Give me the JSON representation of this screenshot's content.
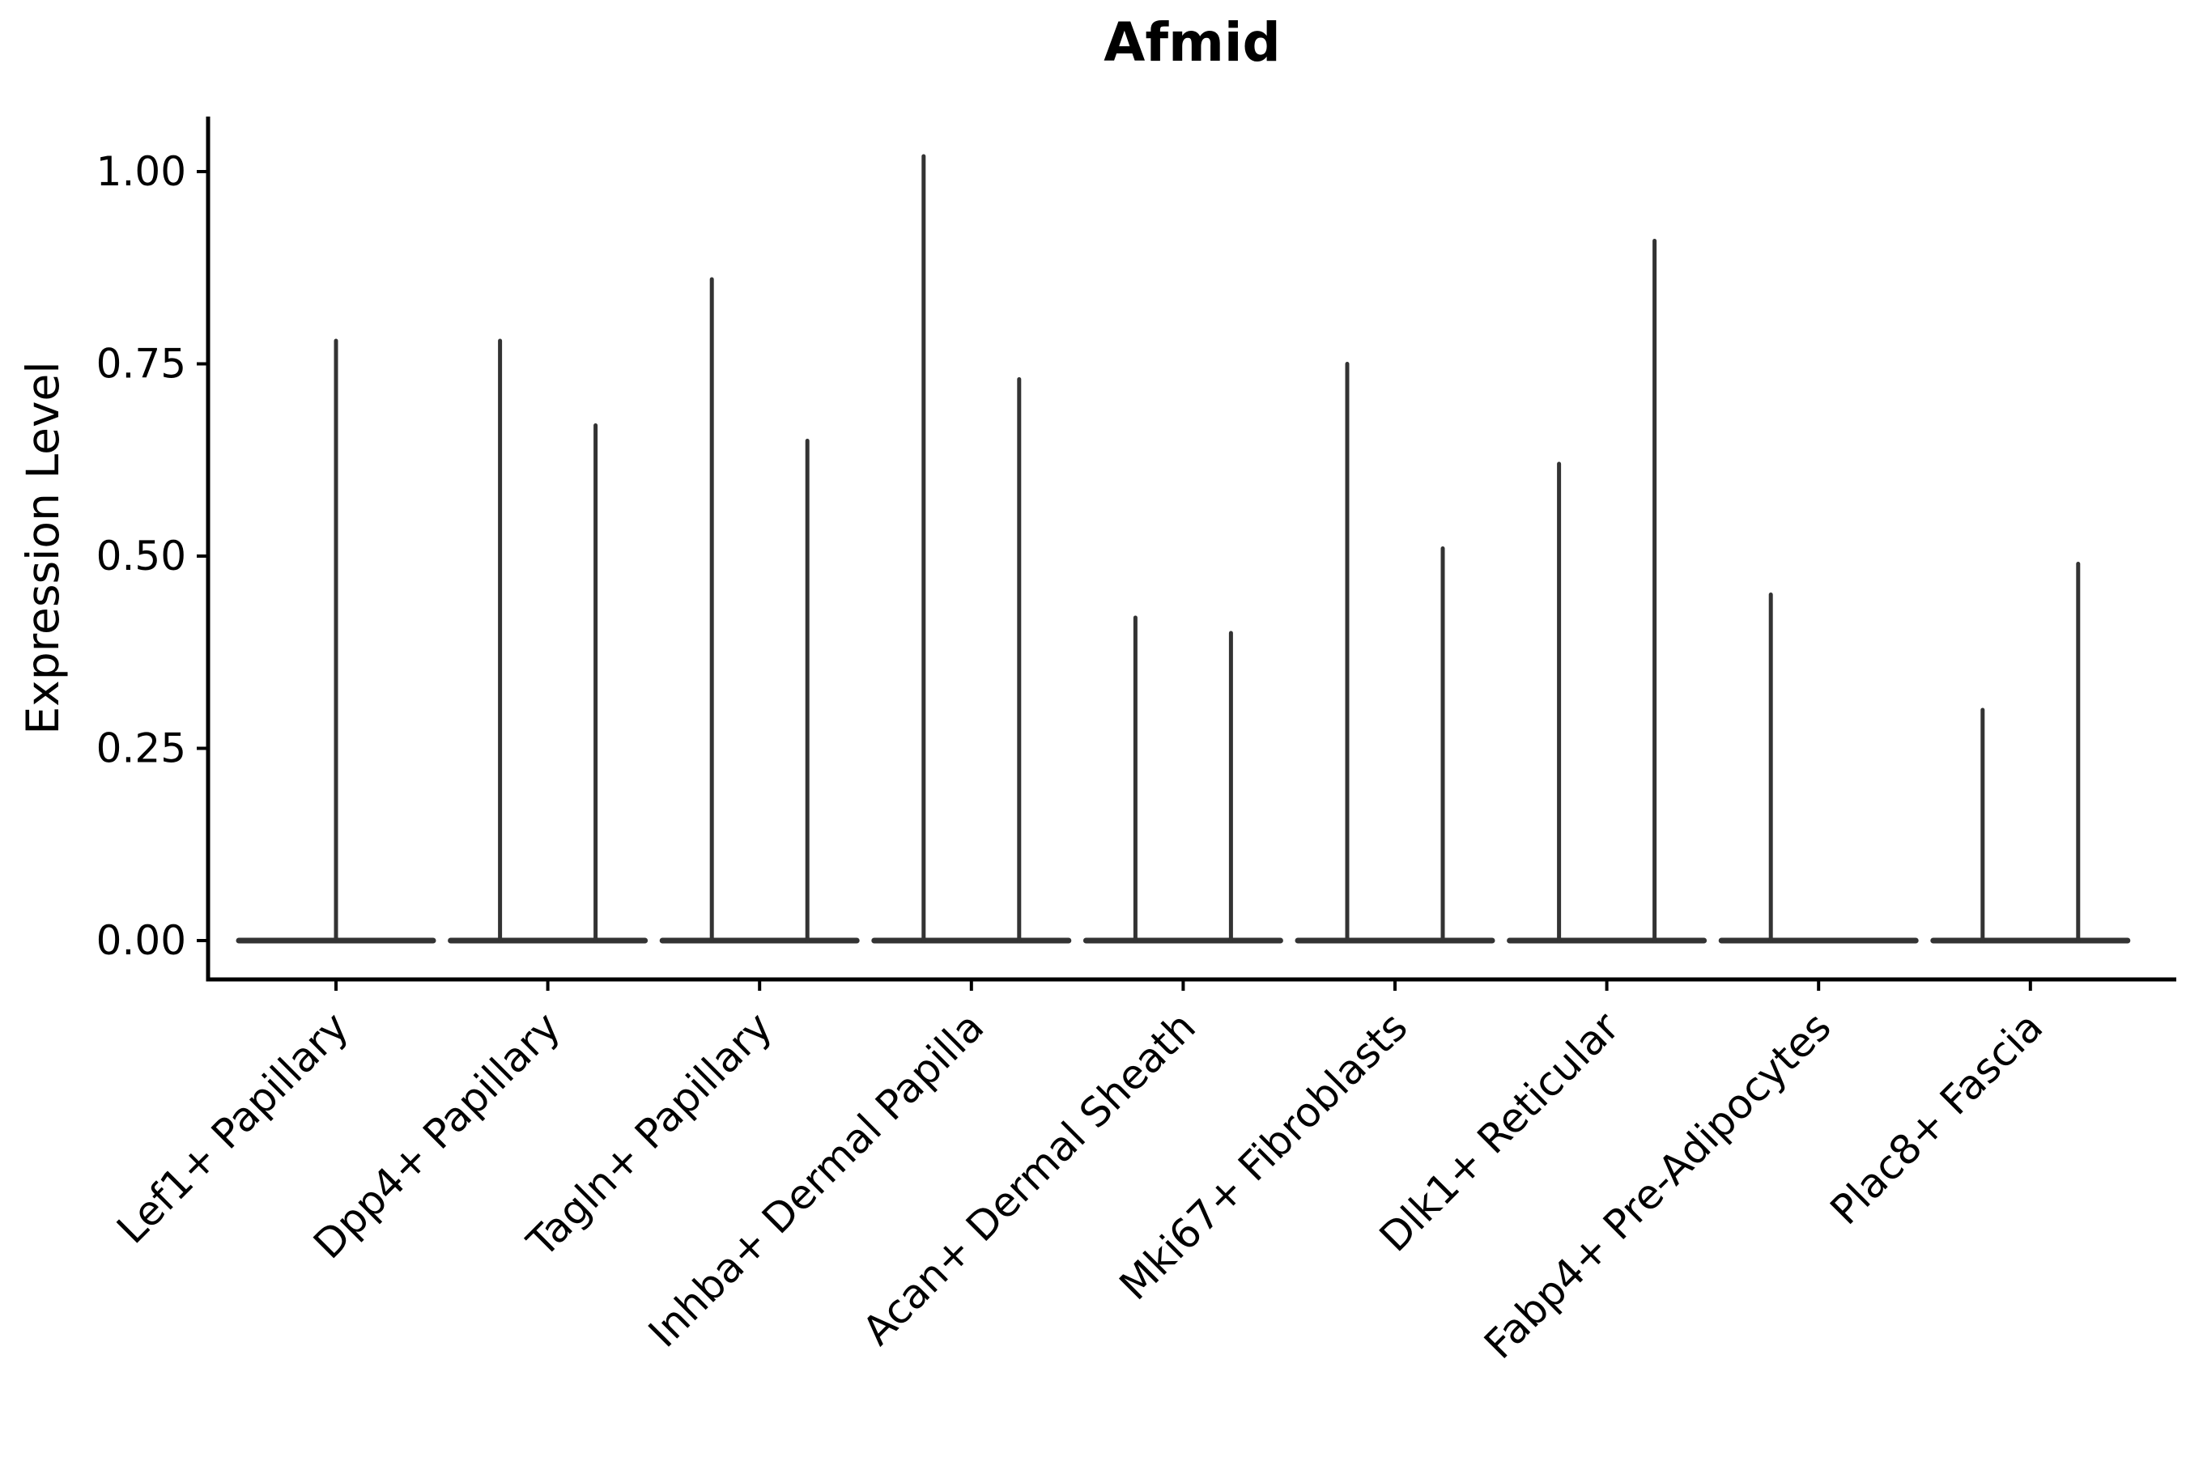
{
  "chart_data": {
    "type": "violin",
    "title": "Afmid",
    "ylabel": "Expression Level",
    "xlabel": "",
    "ylim": [
      0,
      1.07
    ],
    "grid": false,
    "legend_position": "none",
    "yticks": [
      {
        "value": 0.0,
        "label": "0.00"
      },
      {
        "value": 0.25,
        "label": "0.25"
      },
      {
        "value": 0.5,
        "label": "0.50"
      },
      {
        "value": 0.75,
        "label": "0.75"
      },
      {
        "value": 1.0,
        "label": "1.00"
      }
    ],
    "description": "Violin plot of Afmid expression; each cluster shows flat near-zero density with thin spikes up to the maximum expression value. Most clusters contain two adjacent violins (sub-groups).",
    "categories": [
      {
        "label": "Lef1+ Papillary",
        "violins": [
          {
            "pos": "center",
            "max": 0.78
          }
        ]
      },
      {
        "label": "Dpp4+ Papillary",
        "violins": [
          {
            "pos": "left",
            "max": 0.78
          },
          {
            "pos": "right",
            "max": 0.67
          }
        ]
      },
      {
        "label": "Tagln+ Papillary",
        "violins": [
          {
            "pos": "left",
            "max": 0.86
          },
          {
            "pos": "right",
            "max": 0.65
          }
        ]
      },
      {
        "label": "Inhba+ Dermal Papilla",
        "violins": [
          {
            "pos": "left",
            "max": 1.02
          },
          {
            "pos": "right",
            "max": 0.73
          }
        ]
      },
      {
        "label": "Acan+ Dermal Sheath",
        "violins": [
          {
            "pos": "left",
            "max": 0.42
          },
          {
            "pos": "right",
            "max": 0.4
          }
        ]
      },
      {
        "label": "Mki67+ Fibroblasts",
        "violins": [
          {
            "pos": "left",
            "max": 0.75
          },
          {
            "pos": "right",
            "max": 0.51
          }
        ]
      },
      {
        "label": "Dlk1+ Reticular",
        "violins": [
          {
            "pos": "left",
            "max": 0.62
          },
          {
            "pos": "right",
            "max": 0.91
          }
        ]
      },
      {
        "label": "Fabp4+ Pre-Adipocytes",
        "violins": [
          {
            "pos": "left",
            "max": 0.45
          }
        ]
      },
      {
        "label": "Plac8+ Fascia",
        "violins": [
          {
            "pos": "left",
            "max": 0.3
          },
          {
            "pos": "right",
            "max": 0.49
          }
        ]
      }
    ],
    "colors": {
      "violin_line": "#333333",
      "axis": "#000000",
      "text": "#000000",
      "background": "#ffffff"
    }
  }
}
